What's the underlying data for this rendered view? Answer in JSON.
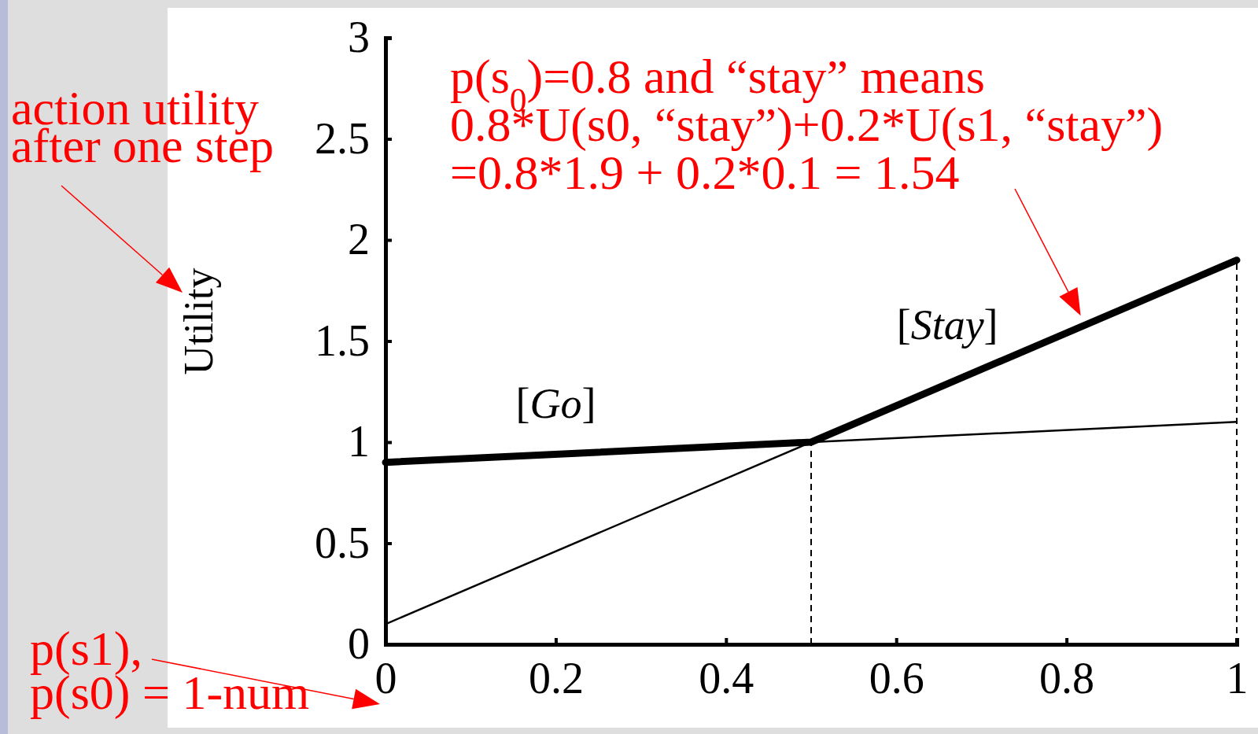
{
  "chart_data": {
    "type": "line",
    "ylabel": "Utility",
    "xlim": [
      0,
      1
    ],
    "xticks": [
      0,
      {
        "value": 0.2,
        "label": "0.2"
      },
      {
        "value": 0.4,
        "label": "0.4"
      },
      {
        "value": 0.6,
        "label": "0.6"
      },
      {
        "value": 0.8,
        "label": "0.8"
      },
      1
    ],
    "ylim": [
      0,
      3
    ],
    "yticks": [
      0,
      0.5,
      1,
      1.5,
      2,
      2.5,
      3
    ],
    "series": [
      {
        "name": "[Go]",
        "color": "#000000",
        "x": [
          0,
          1
        ],
        "values": [
          0.9,
          1.1
        ]
      },
      {
        "name": "[Stay]",
        "color": "#000000",
        "x": [
          0,
          1
        ],
        "values": [
          0.1,
          1.9
        ]
      },
      {
        "color": "#000000",
        "x": [
          0,
          0.5,
          1
        ],
        "values": [
          0.9,
          1.0,
          1.9
        ]
      }
    ],
    "ref_lines": [
      {
        "axis": "x",
        "value": 0.5,
        "color": "#000000",
        "line_style": "dashed"
      },
      {
        "axis": "x",
        "value": 1,
        "color": "#000000",
        "line_style": "dashed"
      }
    ],
    "annotations": [
      {
        "text": "p(s$_{0}$)=0.8 and “stay” means\n0.8*U(s0, “stay”)+0.2*U(s1, “stay”)\n=0.8*1.9 + 0.2*0.1 = 1.54",
        "x": 0.8,
        "y": 1.54
      },
      "action utility\nafter one step",
      "p(s1),\np(s0) = 1-num"
    ],
    "grid": false,
    "legend": false,
    "marker": "none",
    "line_style": "solid"
  }
}
